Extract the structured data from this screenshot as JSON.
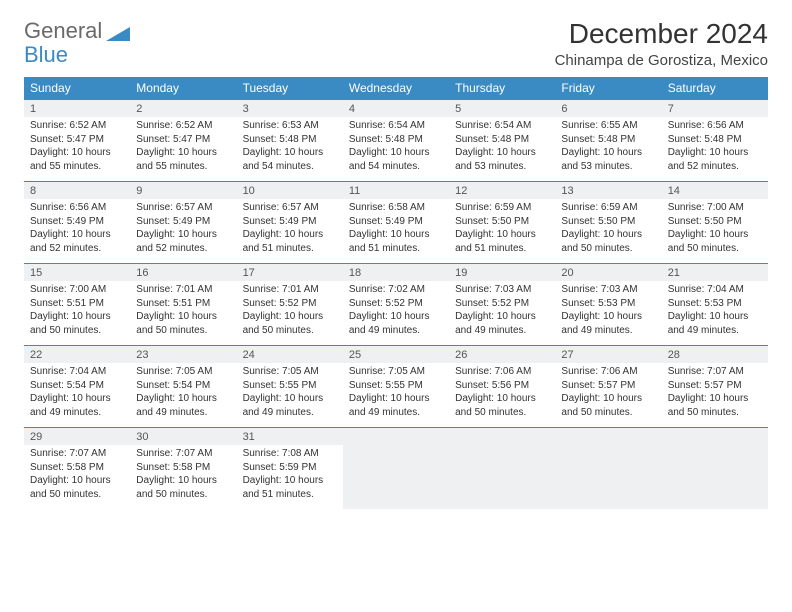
{
  "logo": {
    "word1": "General",
    "word2": "Blue"
  },
  "title": "December 2024",
  "location": "Chinampa de Gorostiza, Mexico",
  "colors": {
    "header_bg": "#3a8ac4",
    "header_fg": "#ffffff",
    "daterow_bg": "#eef0f2",
    "row_border": "#3a8ac4",
    "body_bg": "#ffffff",
    "text": "#333333",
    "logo_gray": "#6a6a6a",
    "logo_blue": "#3a8ac4"
  },
  "fonts": {
    "title_pt": 28,
    "location_pt": 15,
    "header_pt": 12,
    "date_pt": 11,
    "cell_pt": 10
  },
  "weekdays": [
    "Sunday",
    "Monday",
    "Tuesday",
    "Wednesday",
    "Thursday",
    "Friday",
    "Saturday"
  ],
  "weeks": [
    [
      {
        "d": "1",
        "sr": "Sunrise: 6:52 AM",
        "ss": "Sunset: 5:47 PM",
        "dl": "Daylight: 10 hours and 55 minutes."
      },
      {
        "d": "2",
        "sr": "Sunrise: 6:52 AM",
        "ss": "Sunset: 5:47 PM",
        "dl": "Daylight: 10 hours and 55 minutes."
      },
      {
        "d": "3",
        "sr": "Sunrise: 6:53 AM",
        "ss": "Sunset: 5:48 PM",
        "dl": "Daylight: 10 hours and 54 minutes."
      },
      {
        "d": "4",
        "sr": "Sunrise: 6:54 AM",
        "ss": "Sunset: 5:48 PM",
        "dl": "Daylight: 10 hours and 54 minutes."
      },
      {
        "d": "5",
        "sr": "Sunrise: 6:54 AM",
        "ss": "Sunset: 5:48 PM",
        "dl": "Daylight: 10 hours and 53 minutes."
      },
      {
        "d": "6",
        "sr": "Sunrise: 6:55 AM",
        "ss": "Sunset: 5:48 PM",
        "dl": "Daylight: 10 hours and 53 minutes."
      },
      {
        "d": "7",
        "sr": "Sunrise: 6:56 AM",
        "ss": "Sunset: 5:48 PM",
        "dl": "Daylight: 10 hours and 52 minutes."
      }
    ],
    [
      {
        "d": "8",
        "sr": "Sunrise: 6:56 AM",
        "ss": "Sunset: 5:49 PM",
        "dl": "Daylight: 10 hours and 52 minutes."
      },
      {
        "d": "9",
        "sr": "Sunrise: 6:57 AM",
        "ss": "Sunset: 5:49 PM",
        "dl": "Daylight: 10 hours and 52 minutes."
      },
      {
        "d": "10",
        "sr": "Sunrise: 6:57 AM",
        "ss": "Sunset: 5:49 PM",
        "dl": "Daylight: 10 hours and 51 minutes."
      },
      {
        "d": "11",
        "sr": "Sunrise: 6:58 AM",
        "ss": "Sunset: 5:49 PM",
        "dl": "Daylight: 10 hours and 51 minutes."
      },
      {
        "d": "12",
        "sr": "Sunrise: 6:59 AM",
        "ss": "Sunset: 5:50 PM",
        "dl": "Daylight: 10 hours and 51 minutes."
      },
      {
        "d": "13",
        "sr": "Sunrise: 6:59 AM",
        "ss": "Sunset: 5:50 PM",
        "dl": "Daylight: 10 hours and 50 minutes."
      },
      {
        "d": "14",
        "sr": "Sunrise: 7:00 AM",
        "ss": "Sunset: 5:50 PM",
        "dl": "Daylight: 10 hours and 50 minutes."
      }
    ],
    [
      {
        "d": "15",
        "sr": "Sunrise: 7:00 AM",
        "ss": "Sunset: 5:51 PM",
        "dl": "Daylight: 10 hours and 50 minutes."
      },
      {
        "d": "16",
        "sr": "Sunrise: 7:01 AM",
        "ss": "Sunset: 5:51 PM",
        "dl": "Daylight: 10 hours and 50 minutes."
      },
      {
        "d": "17",
        "sr": "Sunrise: 7:01 AM",
        "ss": "Sunset: 5:52 PM",
        "dl": "Daylight: 10 hours and 50 minutes."
      },
      {
        "d": "18",
        "sr": "Sunrise: 7:02 AM",
        "ss": "Sunset: 5:52 PM",
        "dl": "Daylight: 10 hours and 49 minutes."
      },
      {
        "d": "19",
        "sr": "Sunrise: 7:03 AM",
        "ss": "Sunset: 5:52 PM",
        "dl": "Daylight: 10 hours and 49 minutes."
      },
      {
        "d": "20",
        "sr": "Sunrise: 7:03 AM",
        "ss": "Sunset: 5:53 PM",
        "dl": "Daylight: 10 hours and 49 minutes."
      },
      {
        "d": "21",
        "sr": "Sunrise: 7:04 AM",
        "ss": "Sunset: 5:53 PM",
        "dl": "Daylight: 10 hours and 49 minutes."
      }
    ],
    [
      {
        "d": "22",
        "sr": "Sunrise: 7:04 AM",
        "ss": "Sunset: 5:54 PM",
        "dl": "Daylight: 10 hours and 49 minutes."
      },
      {
        "d": "23",
        "sr": "Sunrise: 7:05 AM",
        "ss": "Sunset: 5:54 PM",
        "dl": "Daylight: 10 hours and 49 minutes."
      },
      {
        "d": "24",
        "sr": "Sunrise: 7:05 AM",
        "ss": "Sunset: 5:55 PM",
        "dl": "Daylight: 10 hours and 49 minutes."
      },
      {
        "d": "25",
        "sr": "Sunrise: 7:05 AM",
        "ss": "Sunset: 5:55 PM",
        "dl": "Daylight: 10 hours and 49 minutes."
      },
      {
        "d": "26",
        "sr": "Sunrise: 7:06 AM",
        "ss": "Sunset: 5:56 PM",
        "dl": "Daylight: 10 hours and 50 minutes."
      },
      {
        "d": "27",
        "sr": "Sunrise: 7:06 AM",
        "ss": "Sunset: 5:57 PM",
        "dl": "Daylight: 10 hours and 50 minutes."
      },
      {
        "d": "28",
        "sr": "Sunrise: 7:07 AM",
        "ss": "Sunset: 5:57 PM",
        "dl": "Daylight: 10 hours and 50 minutes."
      }
    ],
    [
      {
        "d": "29",
        "sr": "Sunrise: 7:07 AM",
        "ss": "Sunset: 5:58 PM",
        "dl": "Daylight: 10 hours and 50 minutes."
      },
      {
        "d": "30",
        "sr": "Sunrise: 7:07 AM",
        "ss": "Sunset: 5:58 PM",
        "dl": "Daylight: 10 hours and 50 minutes."
      },
      {
        "d": "31",
        "sr": "Sunrise: 7:08 AM",
        "ss": "Sunset: 5:59 PM",
        "dl": "Daylight: 10 hours and 51 minutes."
      },
      null,
      null,
      null,
      null
    ]
  ]
}
